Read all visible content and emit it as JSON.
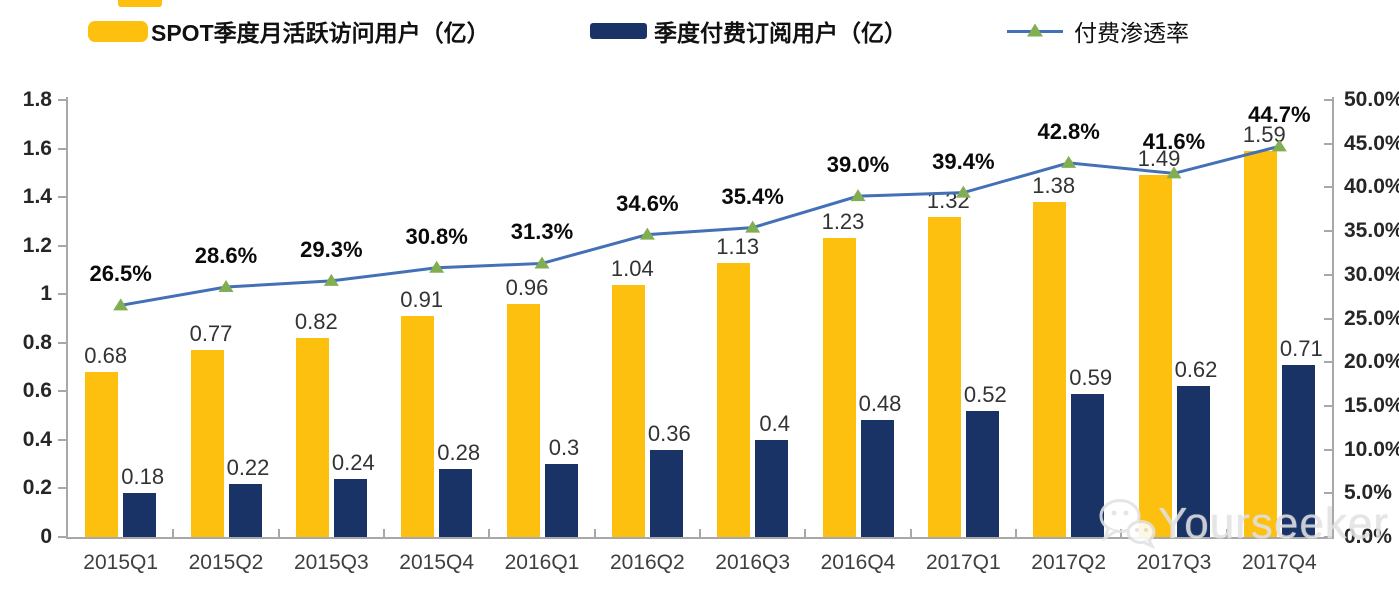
{
  "watermark": {
    "text": "Yourseeker",
    "icon": "wechat-icon"
  },
  "chart_data": {
    "type": "bar",
    "title": "",
    "categories": [
      "2015Q1",
      "2015Q2",
      "2015Q3",
      "2015Q4",
      "2016Q1",
      "2016Q2",
      "2016Q3",
      "2016Q4",
      "2017Q1",
      "2017Q2",
      "2017Q3",
      "2017Q4"
    ],
    "series": [
      {
        "name": "SPOT季度月活跃访问用户（亿）",
        "type": "bar",
        "axis": "left",
        "color": "#FDC00E",
        "values": [
          0.68,
          0.77,
          0.82,
          0.91,
          0.96,
          1.04,
          1.13,
          1.23,
          1.32,
          1.38,
          1.49,
          1.59
        ],
        "labels": [
          "0.68",
          "0.77",
          "0.82",
          "0.91",
          "0.96",
          "1.04",
          "1.13",
          "1.23",
          "1.32",
          "1.38",
          "1.49",
          "1.59"
        ]
      },
      {
        "name": "季度付费订阅用户（亿）",
        "type": "bar",
        "axis": "left",
        "color": "#1A3366",
        "values": [
          0.18,
          0.22,
          0.24,
          0.28,
          0.3,
          0.36,
          0.4,
          0.48,
          0.52,
          0.59,
          0.62,
          0.71
        ],
        "labels": [
          "0.18",
          "0.22",
          "0.24",
          "0.28",
          "0.3",
          "0.36",
          "0.4",
          "0.48",
          "0.52",
          "0.59",
          "0.62",
          "0.71"
        ]
      },
      {
        "name": "付费渗透率",
        "type": "line",
        "axis": "right",
        "color": "#4370B7",
        "marker": "triangle",
        "marker_color": "#82AE52",
        "values": [
          26.5,
          28.6,
          29.3,
          30.8,
          31.3,
          34.6,
          35.4,
          39.0,
          39.4,
          42.8,
          41.6,
          44.7
        ],
        "labels": [
          "26.5%",
          "28.6%",
          "29.3%",
          "30.8%",
          "31.3%",
          "34.6%",
          "35.4%",
          "39.0%",
          "39.4%",
          "42.8%",
          "41.6%",
          "44.7%"
        ]
      }
    ],
    "left_axis": {
      "min": 0,
      "max": 1.8,
      "ticks": [
        "0",
        "0.2",
        "0.4",
        "0.6",
        "0.8",
        "1",
        "1.2",
        "1.4",
        "1.6",
        "1.8"
      ]
    },
    "right_axis": {
      "min": 0,
      "max": 50,
      "ticks": [
        "0.0%",
        "5.0%",
        "10.0%",
        "15.0%",
        "20.0%",
        "25.0%",
        "30.0%",
        "35.0%",
        "40.0%",
        "45.0%",
        "50.0%"
      ]
    },
    "grid": false,
    "legend_position": "top"
  }
}
